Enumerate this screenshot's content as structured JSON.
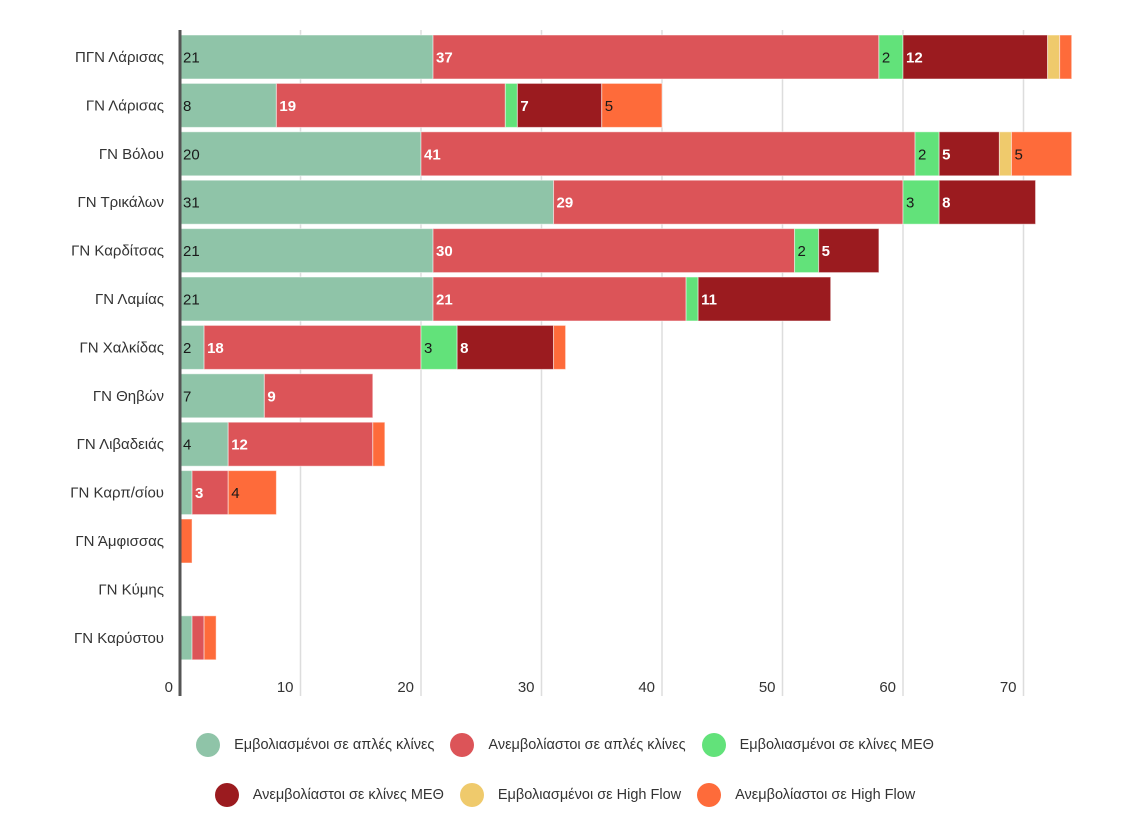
{
  "chart_data": {
    "type": "bar",
    "orientation": "horizontal",
    "stacked": true,
    "title": "",
    "xlabel": "",
    "ylabel": "",
    "xlim": [
      0,
      74
    ],
    "xticks": [
      0,
      10,
      20,
      30,
      40,
      50,
      60,
      70
    ],
    "grid": true,
    "legend_position": "bottom",
    "categories": [
      "ΠΓΝ Λάρισας",
      "ΓΝ Λάρισας",
      "ΓΝ Βόλου",
      "ΓΝ Τρικάλων",
      "ΓΝ Καρδίτσας",
      "ΓΝ Λαμίας",
      "ΓΝ Χαλκίδας",
      "ΓΝ Θηβών",
      "ΓΝ Λιβαδειάς",
      "ΓΝ Καρπ/σίου",
      "ΓΝ Άμφισσας",
      "ΓΝ Κύμης",
      "ΓΝ Καρύστου"
    ],
    "series": [
      {
        "name": "Εμβολιασμένοι σε απλές κλίνες",
        "color": "#8fc4a8",
        "label_style": "dark",
        "values": [
          21,
          8,
          20,
          31,
          21,
          21,
          2,
          7,
          4,
          1,
          0,
          0,
          1
        ]
      },
      {
        "name": "Ανεμβολίαστοι σε απλές κλίνες",
        "color": "#dc5458",
        "label_style": "light",
        "values": [
          37,
          19,
          41,
          29,
          30,
          21,
          18,
          9,
          12,
          3,
          0,
          0,
          1
        ]
      },
      {
        "name": "Εμβολιασμένοι σε κλίνες ΜΕΘ",
        "color": "#62e27a",
        "label_style": "dark",
        "values": [
          2,
          1,
          2,
          3,
          2,
          1,
          3,
          0,
          0,
          0,
          0,
          0,
          0
        ]
      },
      {
        "name": "Ανεμβολίαστοι σε κλίνες ΜΕΘ",
        "color": "#9b1b1f",
        "label_style": "light",
        "values": [
          12,
          7,
          5,
          8,
          5,
          11,
          8,
          0,
          0,
          0,
          0,
          0,
          0
        ]
      },
      {
        "name": "Εμβολιασμένοι σε High Flow",
        "color": "#efca6c",
        "label_style": "dark",
        "values": [
          1,
          0,
          1,
          0,
          0,
          0,
          0,
          0,
          0,
          0,
          0,
          0,
          0
        ]
      },
      {
        "name": "Ανεμβολίαστοι σε High Flow",
        "color": "#fe6b3a",
        "label_style": "dark",
        "values": [
          1,
          5,
          5,
          0,
          0,
          0,
          1,
          0,
          1,
          4,
          1,
          0,
          1
        ]
      }
    ],
    "label_min_value": 2
  },
  "legend": {
    "rows": [
      [
        0,
        1,
        2
      ],
      [
        3,
        4,
        5
      ]
    ]
  }
}
